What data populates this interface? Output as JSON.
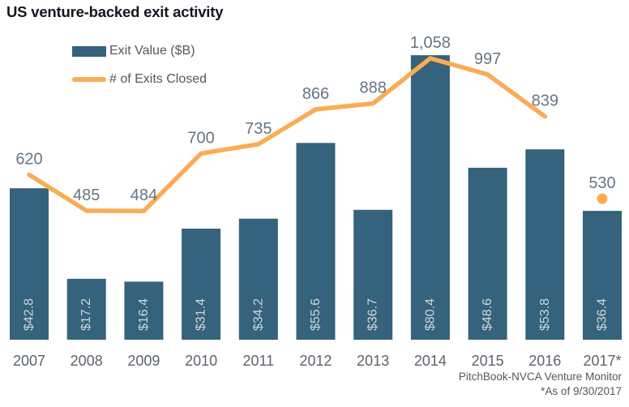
{
  "title": "US venture-backed exit activity",
  "footer": {
    "source": "PitchBook-NVCA Venture Monitor",
    "note": "*As of 9/30/2017"
  },
  "colors": {
    "bar": "#35627c",
    "line": "#faac55",
    "title": "#15151f",
    "line_value_label": "#687582",
    "year_label": "#5d646b",
    "bar_value_label": "#ccd6dd",
    "legend_text": "#55575f",
    "footer_text": "#55575c",
    "background": "#ffffff"
  },
  "chart_data": {
    "type": "bar",
    "subtype": "bar-and-line-combo",
    "title": "US venture-backed exit activity",
    "categories": [
      "2007",
      "2008",
      "2009",
      "2010",
      "2011",
      "2012",
      "2013",
      "2014",
      "2015",
      "2016",
      "2017*"
    ],
    "series": [
      {
        "name": "Exit Value ($B)",
        "type": "bar",
        "axis": "left",
        "values": [
          42.8,
          17.2,
          16.4,
          31.4,
          34.2,
          55.6,
          36.7,
          80.4,
          48.6,
          53.8,
          36.4
        ],
        "labels": [
          "$42.8",
          "$17.2",
          "$16.4",
          "$31.4",
          "$34.2",
          "$55.6",
          "$36.7",
          "$80.4",
          "$48.6",
          "$53.8",
          "$36.4"
        ]
      },
      {
        "name": "# of Exits Closed",
        "type": "line",
        "axis": "right",
        "values": [
          620,
          485,
          484,
          700,
          735,
          866,
          888,
          1058,
          997,
          839,
          530
        ],
        "labels": [
          "620",
          "485",
          "484",
          "700",
          "735",
          "866",
          "888",
          "1,058",
          "997",
          "839",
          "530"
        ],
        "dot_only_indices": [
          10
        ]
      }
    ],
    "left_axis_range": [
      0,
      96
    ],
    "right_axis_range": [
      0,
      1277
    ],
    "grid": false,
    "axes_shown": false,
    "legend_position": "top-left",
    "annotations": [
      "PitchBook-NVCA Venture Monitor",
      "*As of 9/30/2017"
    ]
  }
}
